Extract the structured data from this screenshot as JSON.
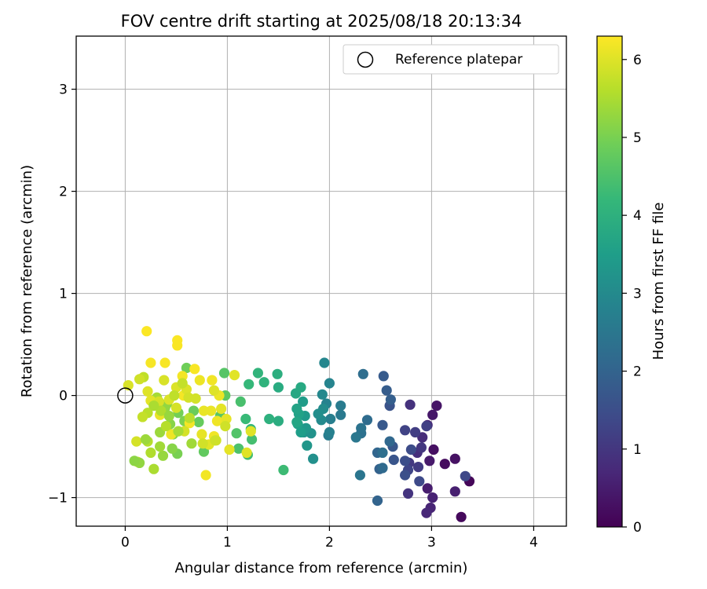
{
  "chart_data": {
    "type": "scatter",
    "title": "FOV centre drift starting at 2025/08/18 20:13:34",
    "xlabel": "Angular distance from reference (arcmin)",
    "ylabel": "Rotation from reference (arcmin)",
    "xlim": [
      -0.48,
      4.32
    ],
    "ylim": [
      -1.28,
      3.52
    ],
    "xticks": [
      0,
      1,
      2,
      3,
      4
    ],
    "xtick_labels": [
      "0",
      "1",
      "2",
      "3",
      "4"
    ],
    "yticks": [
      -1,
      0,
      1,
      2,
      3
    ],
    "ytick_labels": [
      "−1",
      "0",
      "1",
      "2",
      "3"
    ],
    "grid": true,
    "legend": {
      "position": "top-right",
      "entries": [
        {
          "label": "Reference platepar",
          "marker": "open-circle"
        }
      ]
    },
    "colorbar": {
      "label": "Hours from first FF file",
      "colormap": "viridis",
      "range": [
        0,
        6.3
      ],
      "ticks": [
        0,
        1,
        2,
        3,
        4,
        5,
        6
      ],
      "tick_labels": [
        "0",
        "1",
        "2",
        "3",
        "4",
        "5",
        "6"
      ],
      "colors": [
        "#440154",
        "#482878",
        "#3e4a89",
        "#31688e",
        "#26828e",
        "#1f9e89",
        "#35b779",
        "#6ece58",
        "#b5de2b",
        "#fde725"
      ]
    },
    "reference": {
      "x": 0,
      "y": 0,
      "label": "Reference platepar"
    },
    "series": [
      {
        "points": [
          [
            3.37,
            -0.84,
            0.1
          ],
          [
            3.29,
            -1.19,
            0.15
          ],
          [
            3.13,
            -0.67,
            0.2
          ],
          [
            3.02,
            -0.53,
            0.25
          ],
          [
            3.23,
            -0.62,
            0.3
          ],
          [
            3.05,
            -0.1,
            0.35
          ],
          [
            3.01,
            -0.19,
            0.4
          ],
          [
            2.98,
            -0.64,
            0.45
          ],
          [
            2.96,
            -0.91,
            0.5
          ],
          [
            3.23,
            -0.94,
            0.55
          ],
          [
            3.01,
            -1.0,
            0.6
          ],
          [
            2.99,
            -1.1,
            0.65
          ],
          [
            2.95,
            -1.15,
            0.7
          ],
          [
            2.96,
            -0.29,
            0.75
          ],
          [
            2.91,
            -0.41,
            0.8
          ],
          [
            2.86,
            -0.56,
            0.85
          ],
          [
            2.79,
            -0.09,
            0.9
          ],
          [
            2.77,
            -0.96,
            0.95
          ],
          [
            2.9,
            -0.51,
            1.0
          ],
          [
            2.78,
            -0.66,
            1.05
          ],
          [
            2.87,
            -0.7,
            1.1
          ],
          [
            2.84,
            -0.36,
            1.15
          ],
          [
            2.95,
            -0.3,
            1.2
          ],
          [
            2.74,
            -0.34,
            1.25
          ],
          [
            2.77,
            -0.73,
            1.3
          ],
          [
            3.33,
            -0.79,
            1.35
          ],
          [
            2.88,
            -0.84,
            1.4
          ],
          [
            2.8,
            -0.53,
            1.45
          ],
          [
            2.74,
            -0.64,
            1.5
          ],
          [
            2.74,
            -0.78,
            1.55
          ],
          [
            2.59,
            -0.1,
            1.6
          ],
          [
            2.63,
            -0.63,
            1.65
          ],
          [
            2.62,
            -0.5,
            1.7
          ],
          [
            2.52,
            -0.29,
            1.75
          ],
          [
            2.53,
            0.19,
            1.8
          ],
          [
            2.56,
            0.05,
            1.85
          ],
          [
            2.6,
            -0.04,
            1.9
          ],
          [
            2.49,
            -0.72,
            1.95
          ],
          [
            2.47,
            -1.03,
            2.0
          ],
          [
            2.47,
            -0.56,
            2.05
          ],
          [
            2.59,
            -0.45,
            2.1
          ],
          [
            2.52,
            -0.71,
            2.15
          ],
          [
            2.37,
            -0.24,
            2.2
          ],
          [
            2.33,
            0.21,
            2.25
          ],
          [
            2.52,
            -0.56,
            2.3
          ],
          [
            2.31,
            -0.37,
            2.35
          ],
          [
            2.31,
            -0.32,
            2.4
          ],
          [
            2.3,
            -0.78,
            2.45
          ],
          [
            2.26,
            -0.41,
            2.5
          ],
          [
            2.11,
            -0.19,
            2.55
          ],
          [
            2.11,
            -0.1,
            2.6
          ],
          [
            1.99,
            -0.39,
            2.65
          ],
          [
            2.01,
            -0.23,
            2.7
          ],
          [
            2.0,
            -0.36,
            2.75
          ],
          [
            1.97,
            -0.08,
            2.8
          ],
          [
            2.0,
            0.12,
            2.85
          ],
          [
            1.95,
            0.32,
            2.9
          ],
          [
            1.93,
            0.01,
            2.95
          ],
          [
            1.92,
            -0.24,
            3.0
          ],
          [
            1.94,
            -0.13,
            3.05
          ],
          [
            1.89,
            -0.18,
            3.1
          ],
          [
            1.84,
            -0.62,
            3.15
          ],
          [
            1.82,
            -0.37,
            3.2
          ],
          [
            1.75,
            -0.36,
            3.25
          ],
          [
            1.78,
            -0.49,
            3.3
          ],
          [
            1.77,
            -0.32,
            3.35
          ],
          [
            1.76,
            -0.2,
            3.4
          ],
          [
            1.74,
            -0.06,
            3.45
          ],
          [
            1.72,
            -0.36,
            3.5
          ],
          [
            1.69,
            -0.28,
            3.55
          ],
          [
            1.7,
            -0.18,
            3.6
          ],
          [
            1.68,
            -0.13,
            3.65
          ],
          [
            1.68,
            -0.26,
            3.7
          ],
          [
            1.67,
            0.02,
            3.75
          ],
          [
            1.72,
            0.08,
            3.8
          ],
          [
            1.5,
            0.08,
            3.85
          ],
          [
            1.5,
            -0.25,
            3.9
          ],
          [
            1.49,
            0.21,
            3.95
          ],
          [
            1.41,
            -0.23,
            4.0
          ],
          [
            1.36,
            0.13,
            4.05
          ],
          [
            1.3,
            0.22,
            4.1
          ],
          [
            1.23,
            -0.33,
            4.15
          ],
          [
            1.21,
            0.11,
            4.2
          ],
          [
            1.18,
            -0.23,
            4.25
          ],
          [
            1.55,
            -0.73,
            4.3
          ],
          [
            1.2,
            -0.58,
            4.35
          ],
          [
            1.24,
            -0.43,
            4.4
          ],
          [
            1.13,
            -0.06,
            4.45
          ],
          [
            1.11,
            -0.52,
            4.5
          ],
          [
            1.09,
            -0.37,
            4.55
          ],
          [
            0.97,
            0.22,
            4.6
          ],
          [
            0.93,
            -0.2,
            4.65
          ],
          [
            0.98,
            0.0,
            4.7
          ],
          [
            0.77,
            -0.55,
            4.75
          ],
          [
            0.72,
            -0.26,
            4.8
          ],
          [
            0.67,
            -0.15,
            4.85
          ],
          [
            0.6,
            0.27,
            4.9
          ],
          [
            0.52,
            -0.17,
            4.95
          ],
          [
            0.51,
            -0.57,
            5.0
          ],
          [
            0.58,
            -0.25,
            5.05
          ],
          [
            0.47,
            -0.38,
            5.1
          ],
          [
            0.44,
            -0.28,
            5.15
          ],
          [
            0.41,
            -0.08,
            5.2
          ],
          [
            0.39,
            -0.12,
            5.25
          ],
          [
            0.37,
            -0.59,
            5.3
          ],
          [
            0.34,
            -0.36,
            5.35
          ],
          [
            0.34,
            -0.5,
            5.4
          ],
          [
            0.31,
            -0.02,
            5.45
          ],
          [
            0.28,
            -0.72,
            5.5
          ],
          [
            0.25,
            -0.56,
            5.55
          ],
          [
            0.22,
            -0.45,
            5.6
          ],
          [
            0.22,
            -0.17,
            5.65
          ],
          [
            0.18,
            0.18,
            5.7
          ],
          [
            0.17,
            -0.21,
            5.75
          ],
          [
            0.12,
            -0.65,
            5.8
          ],
          [
            0.14,
            0.16,
            5.85
          ],
          [
            0.11,
            -0.45,
            5.9
          ],
          [
            0.03,
            0.1,
            5.95
          ],
          [
            0.22,
            0.04,
            6.0
          ],
          [
            0.25,
            -0.05,
            6.05
          ],
          [
            0.34,
            -0.19,
            6.1
          ],
          [
            0.45,
            -0.38,
            6.15
          ],
          [
            0.56,
            0.19,
            6.2
          ],
          [
            0.68,
            0.26,
            6.25
          ],
          [
            0.21,
            0.63,
            6.28
          ],
          [
            0.51,
            0.54,
            6.27
          ],
          [
            0.51,
            0.49,
            6.26
          ],
          [
            0.39,
            0.32,
            6.24
          ],
          [
            0.25,
            0.32,
            6.23
          ],
          [
            0.57,
            0.0,
            6.22
          ],
          [
            0.63,
            -0.27,
            6.21
          ],
          [
            0.79,
            -0.78,
            6.19
          ],
          [
            0.85,
            0.15,
            6.18
          ],
          [
            0.87,
            -0.4,
            6.17
          ],
          [
            0.9,
            -0.25,
            6.16
          ],
          [
            0.73,
            0.15,
            6.14
          ],
          [
            0.92,
            0.0,
            6.13
          ],
          [
            0.84,
            -0.15,
            6.12
          ],
          [
            0.77,
            -0.15,
            6.11
          ],
          [
            0.75,
            -0.38,
            6.09
          ],
          [
            0.99,
            -0.23,
            6.08
          ],
          [
            1.02,
            -0.53,
            6.07
          ],
          [
            0.94,
            -0.13,
            6.06
          ],
          [
            0.82,
            -0.48,
            6.04
          ],
          [
            1.07,
            0.2,
            6.03
          ],
          [
            1.19,
            -0.56,
            6.02
          ],
          [
            1.23,
            -0.35,
            6.01
          ],
          [
            0.87,
            0.05,
            6.0
          ],
          [
            0.6,
            0.06,
            5.98
          ],
          [
            0.5,
            0.08,
            5.97
          ],
          [
            0.43,
            -0.04,
            5.96
          ],
          [
            0.38,
            0.15,
            5.94
          ],
          [
            0.33,
            -0.06,
            5.93
          ],
          [
            0.3,
            -0.09,
            5.92
          ],
          [
            0.5,
            -0.12,
            5.91
          ],
          [
            0.58,
            -0.35,
            5.9
          ],
          [
            0.62,
            -0.02,
            5.89
          ],
          [
            0.69,
            -0.03,
            5.88
          ],
          [
            0.76,
            -0.47,
            5.87
          ],
          [
            0.88,
            -0.44,
            5.86
          ],
          [
            0.98,
            -0.3,
            5.85
          ],
          [
            0.89,
            -0.44,
            5.84
          ],
          [
            0.56,
            0.12,
            5.75
          ],
          [
            0.48,
            0.0,
            5.7
          ],
          [
            0.63,
            -0.22,
            5.65
          ],
          [
            0.4,
            -0.3,
            5.6
          ],
          [
            0.35,
            -0.15,
            5.55
          ],
          [
            0.28,
            -0.1,
            5.5
          ],
          [
            0.52,
            -0.35,
            5.45
          ],
          [
            0.65,
            -0.47,
            5.4
          ],
          [
            0.2,
            -0.43,
            5.35
          ],
          [
            0.43,
            -0.2,
            5.3
          ],
          [
            0.14,
            -0.66,
            5.25
          ],
          [
            0.09,
            -0.64,
            5.2
          ],
          [
            0.46,
            -0.52,
            5.15
          ]
        ]
      }
    ]
  }
}
